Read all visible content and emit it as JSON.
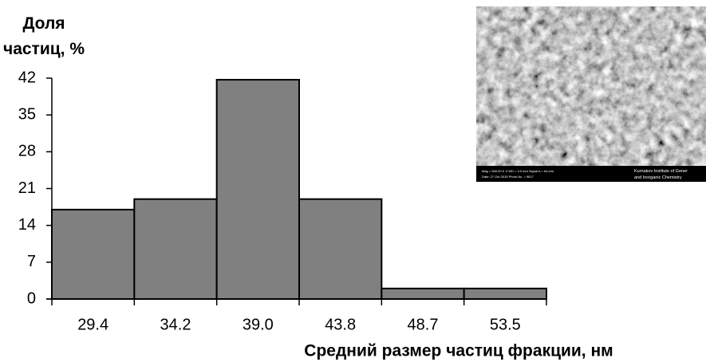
{
  "chart_data": {
    "type": "bar",
    "y_label": "Доля частиц, %",
    "x_label": "Средний размер частиц фракции, нм",
    "categories": [
      "29.4",
      "34.2",
      "39.0",
      "43.8",
      "48.7",
      "53.5"
    ],
    "values": [
      17,
      19,
      41.7,
      19,
      2,
      2
    ],
    "color": "#808080",
    "ylim": [
      0,
      42
    ],
    "yticks": [
      0,
      7,
      14,
      21,
      28,
      35,
      42
    ],
    "inset_caption": [
      "Kurnakov Institute of Gener",
      "and Inorganic Chemistry"
    ]
  }
}
